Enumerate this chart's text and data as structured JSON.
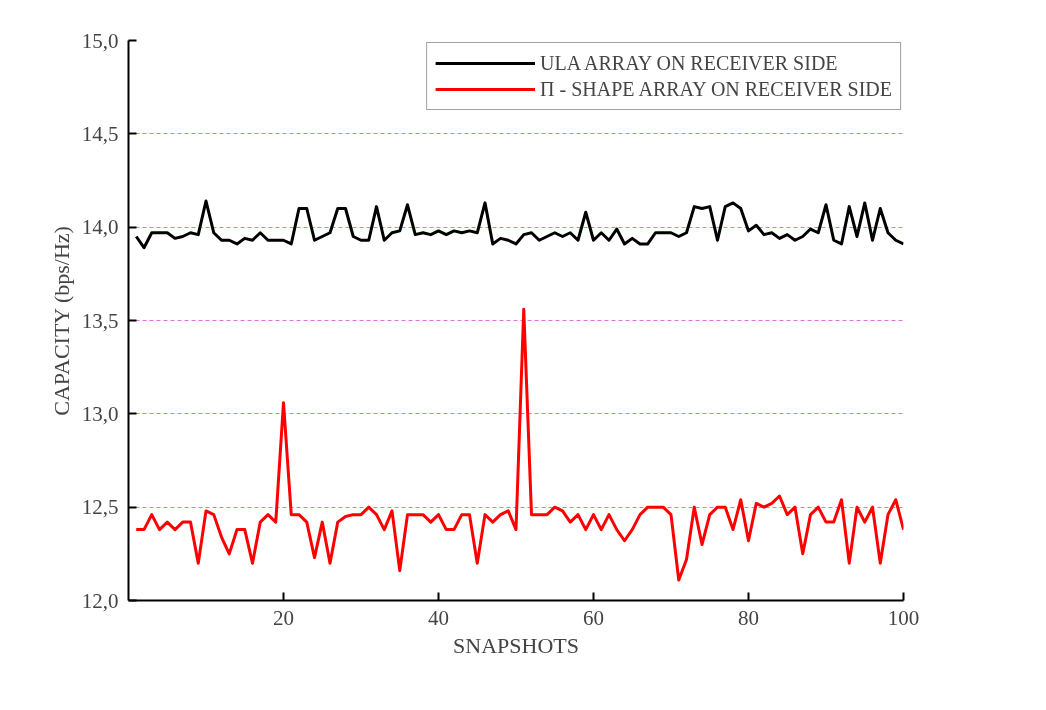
{
  "chart_data": {
    "type": "line",
    "xlabel": "SNAPSHOTS",
    "ylabel": "CAPACITY (bps/Hz)",
    "x": [
      1,
      2,
      3,
      4,
      5,
      6,
      7,
      8,
      9,
      10,
      11,
      12,
      13,
      14,
      15,
      16,
      17,
      18,
      19,
      20,
      21,
      22,
      23,
      24,
      25,
      26,
      27,
      28,
      29,
      30,
      31,
      32,
      33,
      34,
      35,
      36,
      37,
      38,
      39,
      40,
      41,
      42,
      43,
      44,
      45,
      46,
      47,
      48,
      49,
      50,
      51,
      52,
      53,
      54,
      55,
      56,
      57,
      58,
      59,
      60,
      61,
      62,
      63,
      64,
      65,
      66,
      67,
      68,
      69,
      70,
      71,
      72,
      73,
      74,
      75,
      76,
      77,
      78,
      79,
      80,
      81,
      82,
      83,
      84,
      85,
      86,
      87,
      88,
      89,
      90,
      91,
      92,
      93,
      94,
      95,
      96,
      97,
      98,
      99,
      100
    ],
    "series": [
      {
        "name": "ULA ARRAY ON RECEIVER SIDE",
        "color": "#000000",
        "values": [
          13.95,
          13.89,
          13.97,
          13.97,
          13.97,
          13.94,
          13.95,
          13.97,
          13.96,
          14.14,
          13.97,
          13.93,
          13.93,
          13.91,
          13.94,
          13.93,
          13.97,
          13.93,
          13.93,
          13.93,
          13.91,
          14.1,
          14.1,
          13.93,
          13.95,
          13.97,
          14.1,
          14.1,
          13.95,
          13.93,
          13.93,
          14.11,
          13.93,
          13.97,
          13.98,
          14.12,
          13.96,
          13.97,
          13.96,
          13.98,
          13.96,
          13.98,
          13.97,
          13.98,
          13.97,
          14.13,
          13.91,
          13.94,
          13.93,
          13.91,
          13.96,
          13.97,
          13.93,
          13.95,
          13.97,
          13.95,
          13.97,
          13.93,
          14.08,
          13.93,
          13.97,
          13.93,
          13.99,
          13.91,
          13.94,
          13.91,
          13.91,
          13.97,
          13.97,
          13.97,
          13.95,
          13.97,
          14.11,
          14.1,
          14.11,
          13.93,
          14.11,
          14.13,
          14.1,
          13.98,
          14.01,
          13.96,
          13.97,
          13.94,
          13.96,
          13.93,
          13.95,
          13.99,
          13.97,
          14.12,
          13.93,
          13.91,
          14.11,
          13.95,
          14.13,
          13.93,
          14.1,
          13.97,
          13.93,
          13.91
        ]
      },
      {
        "name": "Π - SHAPE ARRAY ON RECEIVER SIDE",
        "color": "#ff0000",
        "values": [
          12.38,
          12.38,
          12.46,
          12.38,
          12.42,
          12.38,
          12.42,
          12.42,
          12.2,
          12.48,
          12.46,
          12.34,
          12.25,
          12.38,
          12.38,
          12.2,
          12.42,
          12.46,
          12.42,
          13.06,
          12.46,
          12.46,
          12.42,
          12.23,
          12.42,
          12.2,
          12.42,
          12.45,
          12.46,
          12.46,
          12.5,
          12.46,
          12.38,
          12.48,
          12.16,
          12.46,
          12.46,
          12.46,
          12.42,
          12.46,
          12.38,
          12.38,
          12.46,
          12.46,
          12.2,
          12.46,
          12.42,
          12.46,
          12.48,
          12.38,
          13.56,
          12.46,
          12.46,
          12.46,
          12.5,
          12.48,
          12.42,
          12.46,
          12.38,
          12.46,
          12.38,
          12.46,
          12.38,
          12.32,
          12.38,
          12.46,
          12.5,
          12.5,
          12.5,
          12.46,
          12.11,
          12.22,
          12.5,
          12.3,
          12.46,
          12.5,
          12.5,
          12.38,
          12.54,
          12.32,
          12.52,
          12.5,
          12.52,
          12.56,
          12.46,
          12.5,
          12.25,
          12.46,
          12.5,
          12.42,
          12.42,
          12.54,
          12.2,
          12.5,
          12.42,
          12.5,
          12.2,
          12.46,
          12.54,
          12.38
        ]
      }
    ],
    "xlim": [
      0,
      100
    ],
    "xticks": [
      20,
      40,
      60,
      80,
      100
    ],
    "ylim": [
      12,
      15
    ],
    "yticks": [
      {
        "value": 12.0,
        "label": "12,0"
      },
      {
        "value": 12.5,
        "label": "12,5"
      },
      {
        "value": 13.0,
        "label": "13,0"
      },
      {
        "value": 13.5,
        "label": "13,5"
      },
      {
        "value": 14.0,
        "label": "14,0"
      },
      {
        "value": 14.5,
        "label": "14,5"
      },
      {
        "value": 15.0,
        "label": "15,0"
      }
    ],
    "grid": "y",
    "legend": "top right",
    "marker": "none",
    "line_style": "solid"
  }
}
